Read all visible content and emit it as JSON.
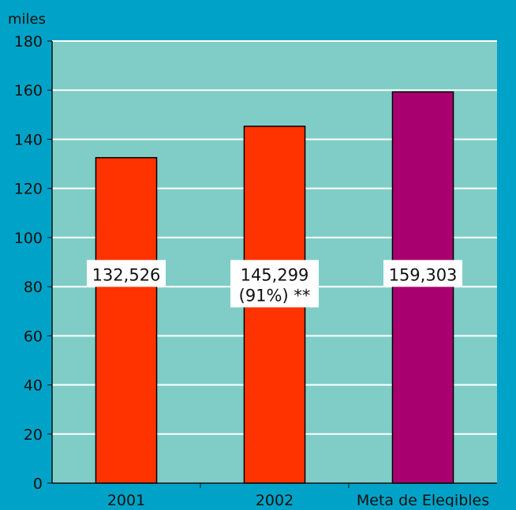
{
  "chart_data": {
    "type": "bar",
    "ylabel": "miles",
    "xlabel": "",
    "ylim": [
      0,
      180
    ],
    "yticks": [
      0,
      20,
      40,
      60,
      80,
      100,
      120,
      140,
      160,
      180
    ],
    "categories": [
      "2001",
      "2002",
      "Meta de Elegibles"
    ],
    "values": [
      132.526,
      145.299,
      159.303
    ],
    "data_labels": [
      [
        "132,526"
      ],
      [
        "145,299",
        "(91%) **"
      ],
      [
        "159,303"
      ]
    ],
    "grid": true,
    "colors": {
      "page_background": "#00a3c7",
      "plot_background": "#80cdc7",
      "gridline": "#ffffff",
      "bars": [
        "#ff3300",
        "#ff3300",
        "#a8006e"
      ],
      "bar_outline": "#000000",
      "label_box": "#ffffff",
      "text": "#111111"
    }
  }
}
